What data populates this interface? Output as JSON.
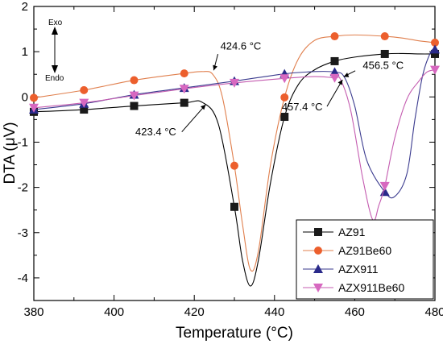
{
  "chart_data": {
    "type": "line",
    "title": "",
    "xlabel": "Temperature (°C)",
    "ylabel": "DTA (μV)",
    "xlim": [
      380,
      480
    ],
    "ylim": [
      -4.5,
      2
    ],
    "xticks": [
      380,
      400,
      420,
      440,
      460,
      480
    ],
    "yticks": [
      -4,
      -3,
      -2,
      -1,
      0,
      1,
      2
    ],
    "grid": false,
    "legend_position": "bottom-right",
    "series": [
      {
        "name": "AZ91",
        "color": "#000000",
        "marker": "square",
        "marker_color": "#1a1a1a",
        "x": [
          380,
          392.5,
          405,
          417.5,
          422,
          426,
          430,
          432,
          434,
          436,
          439,
          442.5,
          446,
          450,
          455,
          460,
          467.5,
          472,
          476,
          480
        ],
        "y": [
          -0.33,
          -0.28,
          -0.2,
          -0.13,
          -0.12,
          -0.6,
          -2.43,
          -3.6,
          -4.18,
          -3.6,
          -1.9,
          -0.44,
          0.28,
          0.6,
          0.79,
          0.88,
          0.95,
          0.96,
          0.95,
          0.95
        ],
        "marker_x": [
          380,
          392.5,
          405,
          417.5,
          430,
          442.5,
          455,
          467.5,
          480
        ],
        "marker_y": [
          -0.33,
          -0.28,
          -0.2,
          -0.13,
          -2.43,
          -0.44,
          0.79,
          0.95,
          0.95
        ]
      },
      {
        "name": "AZ91Be60",
        "color": "#e07f4d",
        "marker": "circle",
        "marker_color": "#ec5f2d",
        "x": [
          380,
          392.5,
          405,
          417.5,
          422,
          424.6,
          427,
          430,
          432,
          434,
          436,
          439,
          442.5,
          446,
          450,
          455,
          460,
          467.5,
          472,
          476,
          480
        ],
        "y": [
          -0.02,
          0.15,
          0.37,
          0.52,
          0.56,
          0.5,
          0.0,
          -1.52,
          -2.8,
          -3.82,
          -3.4,
          -1.5,
          -0.01,
          0.85,
          1.25,
          1.34,
          1.37,
          1.34,
          1.3,
          1.24,
          1.2
        ],
        "marker_x": [
          380,
          392.5,
          405,
          417.5,
          430,
          442.5,
          455,
          467.5,
          480
        ],
        "marker_y": [
          -0.02,
          0.15,
          0.37,
          0.52,
          -1.52,
          -0.01,
          1.34,
          1.34,
          1.2
        ]
      },
      {
        "name": "AZX911",
        "color": "#3a3a8e",
        "marker": "triangle-up",
        "marker_color": "#2a2a8a",
        "x": [
          380,
          392.5,
          405,
          417.5,
          430,
          442.5,
          450,
          455,
          457.4,
          460,
          463,
          467.5,
          470,
          473,
          475,
          477,
          479,
          480
        ],
        "y": [
          -0.28,
          -0.15,
          0.05,
          0.2,
          0.35,
          0.51,
          0.56,
          0.55,
          0.44,
          -0.2,
          -1.4,
          -2.1,
          -2.2,
          -1.7,
          -0.5,
          0.5,
          1.0,
          1.05
        ],
        "marker_x": [
          380,
          392.5,
          405,
          417.5,
          430,
          442.5,
          455,
          467.5,
          480
        ],
        "marker_y": [
          -0.28,
          -0.15,
          0.05,
          0.2,
          0.35,
          0.51,
          0.55,
          -2.1,
          1.05
        ]
      },
      {
        "name": "AZX911Be60",
        "color": "#c45cb0",
        "marker": "triangle-down",
        "marker_color": "#d768c0",
        "x": [
          380,
          392.5,
          405,
          417.5,
          430,
          442.5,
          450,
          455,
          456.5,
          459,
          462,
          464.5,
          466,
          467.5,
          470,
          473,
          476,
          478,
          480
        ],
        "y": [
          -0.24,
          -0.13,
          0.03,
          0.18,
          0.31,
          0.41,
          0.45,
          0.42,
          0.38,
          -0.3,
          -1.8,
          -2.72,
          -2.4,
          -1.97,
          -0.9,
          -0.05,
          0.35,
          0.55,
          0.6
        ],
        "marker_x": [
          380,
          392.5,
          405,
          417.5,
          430,
          442.5,
          455,
          467.5,
          480
        ],
        "marker_y": [
          -0.24,
          -0.13,
          0.03,
          0.18,
          0.31,
          0.41,
          0.42,
          -1.97,
          0.6
        ]
      }
    ],
    "annotations": [
      {
        "text": "424.6 °C",
        "at": [
          424.6,
          0.52
        ],
        "label_at": [
          426.5,
          1.05
        ]
      },
      {
        "text": "423.4 °C",
        "at": [
          423.4,
          -0.12
        ],
        "label_at": [
          415.5,
          -0.85
        ]
      },
      {
        "text": "456.5 °C",
        "at": [
          456.5,
          0.42
        ],
        "label_at": [
          462,
          0.62
        ]
      },
      {
        "text": "457.4 °C",
        "at": [
          457.4,
          0.44
        ],
        "label_at": [
          452,
          -0.3
        ]
      }
    ],
    "side_labels": {
      "exo": "Exo",
      "endo": "Endo"
    }
  }
}
